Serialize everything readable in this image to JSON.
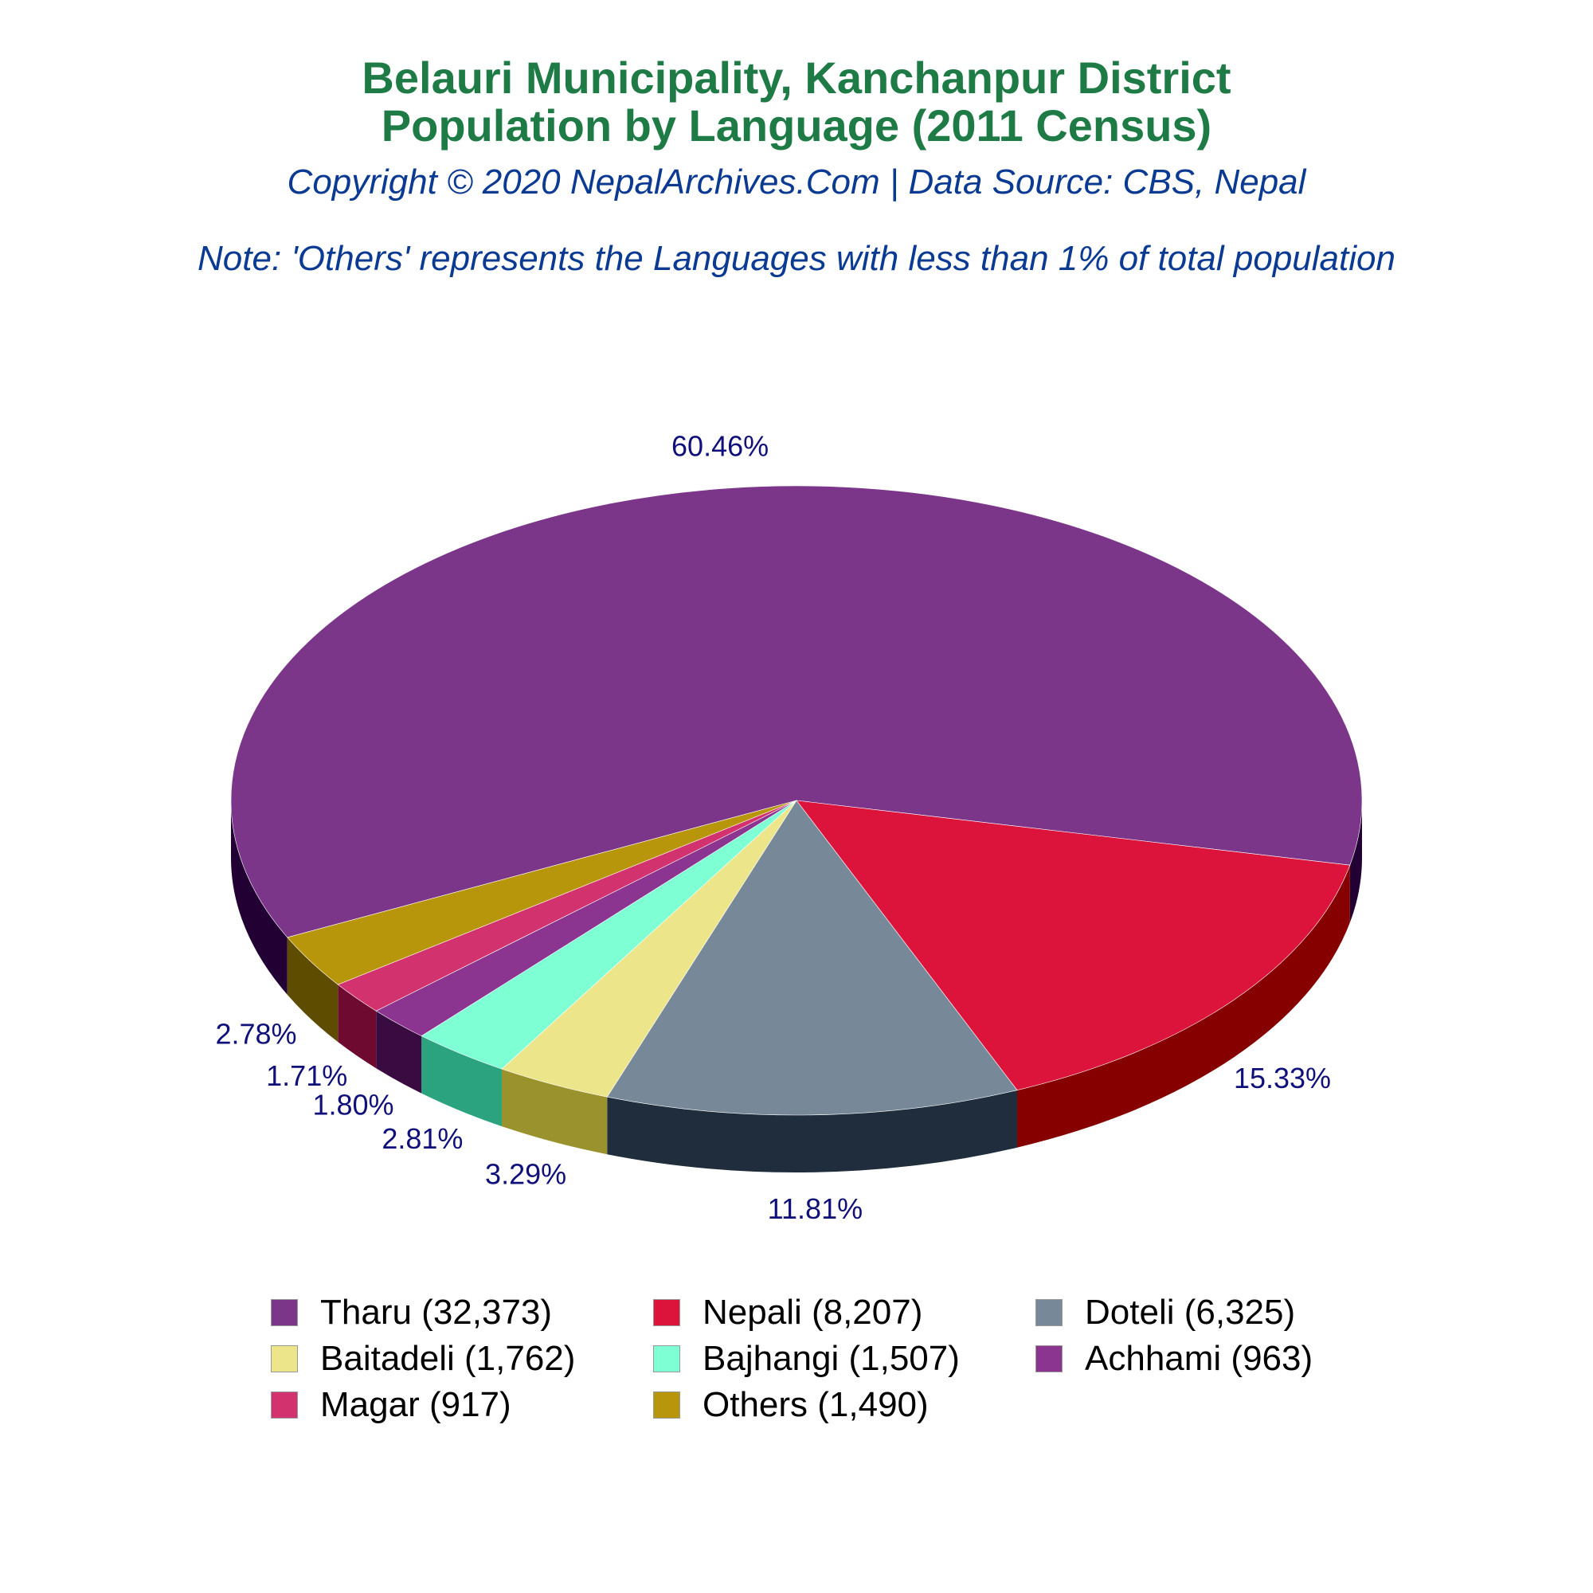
{
  "header": {
    "title_line1": "Belauri Municipality, Kanchanpur District",
    "title_line2": "Population by Language (2011 Census)",
    "copyright": "Copyright © 2020 NepalArchives.Com | Data Source: CBS, Nepal",
    "note": "Note: 'Others' represents the Languages with less than 1% of total population"
  },
  "chart_data": {
    "type": "pie",
    "style": "3d",
    "label_color": "#10107a",
    "legend_position": "bottom",
    "slices": [
      {
        "name": "Tharu",
        "legend": "Tharu (32,373)",
        "value": 32373,
        "percent": 60.46,
        "label": "60.46%",
        "color": "#7b368a",
        "side_color": "#220033"
      },
      {
        "name": "Nepali",
        "legend": "Nepali (8,207)",
        "value": 8207,
        "percent": 15.33,
        "label": "15.33%",
        "color": "#dc143c",
        "side_color": "#870000"
      },
      {
        "name": "Doteli",
        "legend": "Doteli (6,325)",
        "value": 6325,
        "percent": 11.81,
        "label": "11.81%",
        "color": "#778899",
        "side_color": "#1f2d3c"
      },
      {
        "name": "Baitadeli",
        "legend": "Baitadeli (1,762)",
        "value": 1762,
        "percent": 3.29,
        "label": "3.29%",
        "color": "#ede58a",
        "side_color": "#9a922c"
      },
      {
        "name": "Bajhangi",
        "legend": "Bajhangi (1,507)",
        "value": 1507,
        "percent": 2.81,
        "label": "2.81%",
        "color": "#7effd4",
        "side_color": "#2aa37e"
      },
      {
        "name": "Achhami",
        "legend": "Achhami (963)",
        "value": 963,
        "percent": 1.8,
        "label": "1.80%",
        "color": "#8b3490",
        "side_color": "#3a0b40"
      },
      {
        "name": "Magar",
        "legend": "Magar (917)",
        "value": 917,
        "percent": 1.71,
        "label": "1.71%",
        "color": "#d2336f",
        "side_color": "#6e0a30"
      },
      {
        "name": "Others",
        "legend": "Others (1,490)",
        "value": 1490,
        "percent": 2.78,
        "label": "2.78%",
        "color": "#b8960b",
        "side_color": "#5e4c00"
      }
    ]
  }
}
